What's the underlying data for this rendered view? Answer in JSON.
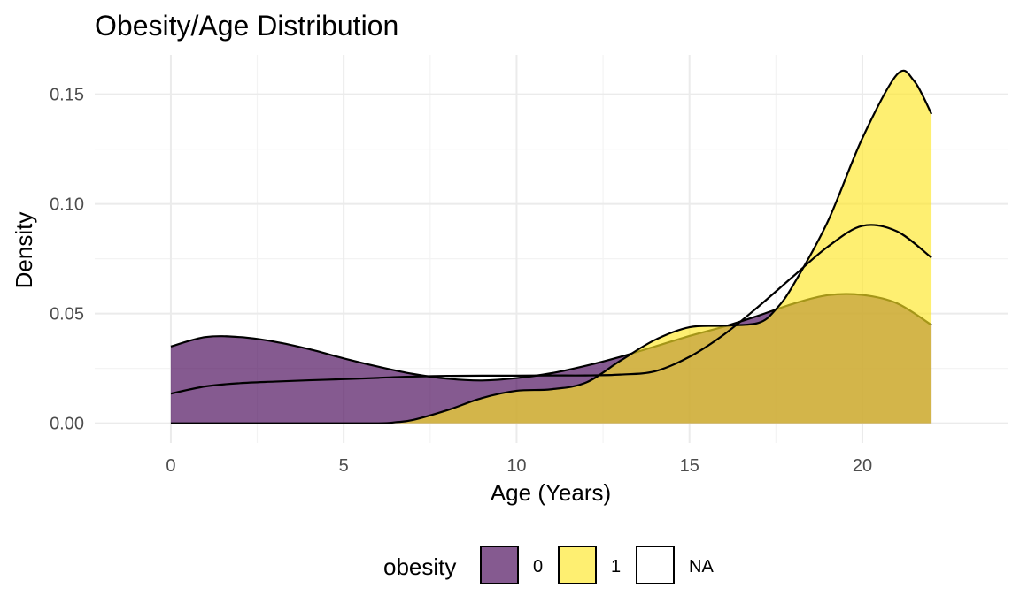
{
  "chart_data": {
    "type": "area",
    "title": "Obesity/Age Distribution",
    "xlabel": "Age (Years)",
    "ylabel": "Density",
    "xlim": [
      -2.2,
      24.2
    ],
    "ylim": [
      -0.009,
      0.168
    ],
    "x_ticks": [
      0,
      5,
      10,
      15,
      20
    ],
    "x_tick_labels": [
      "0",
      "5",
      "10",
      "15",
      "20"
    ],
    "y_ticks": [
      0.0,
      0.05,
      0.1,
      0.15
    ],
    "y_tick_labels": [
      "0.00",
      "0.05",
      "0.10",
      "0.15"
    ],
    "x_minor_ticks": [
      2.5,
      7.5,
      12.5,
      17.5
    ],
    "y_minor_ticks": [
      0.025,
      0.075,
      0.125
    ],
    "grid": true,
    "legend": {
      "title": "obesity",
      "position": "bottom",
      "entries": [
        {
          "label": "0",
          "fill": "#440154",
          "opacity": 0.65
        },
        {
          "label": "1",
          "fill": "#FDE725",
          "opacity": 0.65
        },
        {
          "label": "NA",
          "fill": "#ffffff",
          "opacity": 0
        }
      ]
    },
    "series": [
      {
        "name": "0",
        "fill": "#440154",
        "opacity": 0.65,
        "points": [
          [
            0,
            0.035
          ],
          [
            1,
            0.0393
          ],
          [
            2,
            0.0393
          ],
          [
            3,
            0.0372
          ],
          [
            4,
            0.0338
          ],
          [
            5,
            0.0296
          ],
          [
            6,
            0.0258
          ],
          [
            7,
            0.0225
          ],
          [
            8,
            0.0203
          ],
          [
            9,
            0.0195
          ],
          [
            10,
            0.0206
          ],
          [
            11,
            0.0228
          ],
          [
            12,
            0.0262
          ],
          [
            13,
            0.0303
          ],
          [
            14,
            0.035
          ],
          [
            15,
            0.0398
          ],
          [
            16,
            0.0441
          ],
          [
            17,
            0.0491
          ],
          [
            18,
            0.0545
          ],
          [
            19,
            0.0584
          ],
          [
            20,
            0.0585
          ],
          [
            21,
            0.0547
          ],
          [
            22,
            0.0448
          ]
        ]
      },
      {
        "name": "1",
        "fill": "#FDE725",
        "opacity": 0.65,
        "points": [
          [
            0,
            0
          ],
          [
            2,
            0
          ],
          [
            4,
            0
          ],
          [
            6,
            0
          ],
          [
            6.5,
            0.0005
          ],
          [
            7,
            0.0015
          ],
          [
            8,
            0.006
          ],
          [
            9,
            0.0115
          ],
          [
            10,
            0.0148
          ],
          [
            11,
            0.0155
          ],
          [
            12,
            0.0185
          ],
          [
            13,
            0.0285
          ],
          [
            14,
            0.038
          ],
          [
            15,
            0.0438
          ],
          [
            16,
            0.0445
          ],
          [
            17,
            0.0458
          ],
          [
            17.5,
            0.052
          ],
          [
            18,
            0.063
          ],
          [
            19,
            0.092
          ],
          [
            20,
            0.13
          ],
          [
            21,
            0.159
          ],
          [
            21.5,
            0.156
          ],
          [
            22,
            0.141
          ]
        ]
      },
      {
        "name": "NA",
        "fill": "#ffffff",
        "opacity": 0,
        "points": [
          [
            0,
            0.0135
          ],
          [
            1,
            0.0168
          ],
          [
            2,
            0.0183
          ],
          [
            3,
            0.019
          ],
          [
            4,
            0.0196
          ],
          [
            5,
            0.0201
          ],
          [
            6,
            0.0207
          ],
          [
            7,
            0.0213
          ],
          [
            8,
            0.0216
          ],
          [
            9,
            0.0217
          ],
          [
            10,
            0.0217
          ],
          [
            11,
            0.0218
          ],
          [
            12,
            0.0218
          ],
          [
            13,
            0.0222
          ],
          [
            14,
            0.0237
          ],
          [
            15,
            0.0303
          ],
          [
            16,
            0.0405
          ],
          [
            17,
            0.0533
          ],
          [
            18,
            0.067
          ],
          [
            19,
            0.0805
          ],
          [
            20,
            0.09
          ],
          [
            21,
            0.0875
          ],
          [
            22,
            0.0755
          ]
        ]
      }
    ]
  }
}
